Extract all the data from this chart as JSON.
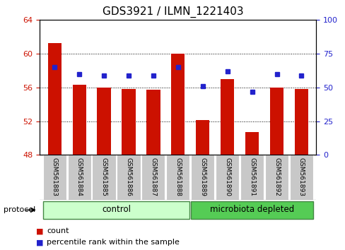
{
  "title": "GDS3921 / ILMN_1221403",
  "samples": [
    "GSM561883",
    "GSM561884",
    "GSM561885",
    "GSM561886",
    "GSM561887",
    "GSM561888",
    "GSM561889",
    "GSM561890",
    "GSM561891",
    "GSM561892",
    "GSM561893"
  ],
  "counts": [
    61.3,
    56.3,
    56.0,
    55.8,
    55.7,
    60.0,
    52.1,
    57.0,
    50.7,
    56.0,
    55.8
  ],
  "percentile_ranks": [
    65,
    60,
    59,
    59,
    59,
    65,
    51,
    62,
    47,
    60,
    59
  ],
  "ylim_left": [
    48,
    64
  ],
  "ylim_right": [
    0,
    100
  ],
  "yticks_left": [
    48,
    52,
    56,
    60,
    64
  ],
  "yticks_right": [
    0,
    25,
    50,
    75,
    100
  ],
  "bar_color": "#cc1100",
  "dot_color": "#2222cc",
  "bar_bottom": 48,
  "n_control": 6,
  "control_label": "control",
  "microbiota_label": "microbiota depleted",
  "protocol_label": "protocol",
  "legend_count": "count",
  "legend_percentile": "percentile rank within the sample",
  "control_color": "#ccffcc",
  "microbiota_color": "#55cc55",
  "label_bg": "#c8c8c8",
  "title_fontsize": 11,
  "tick_fontsize": 8
}
